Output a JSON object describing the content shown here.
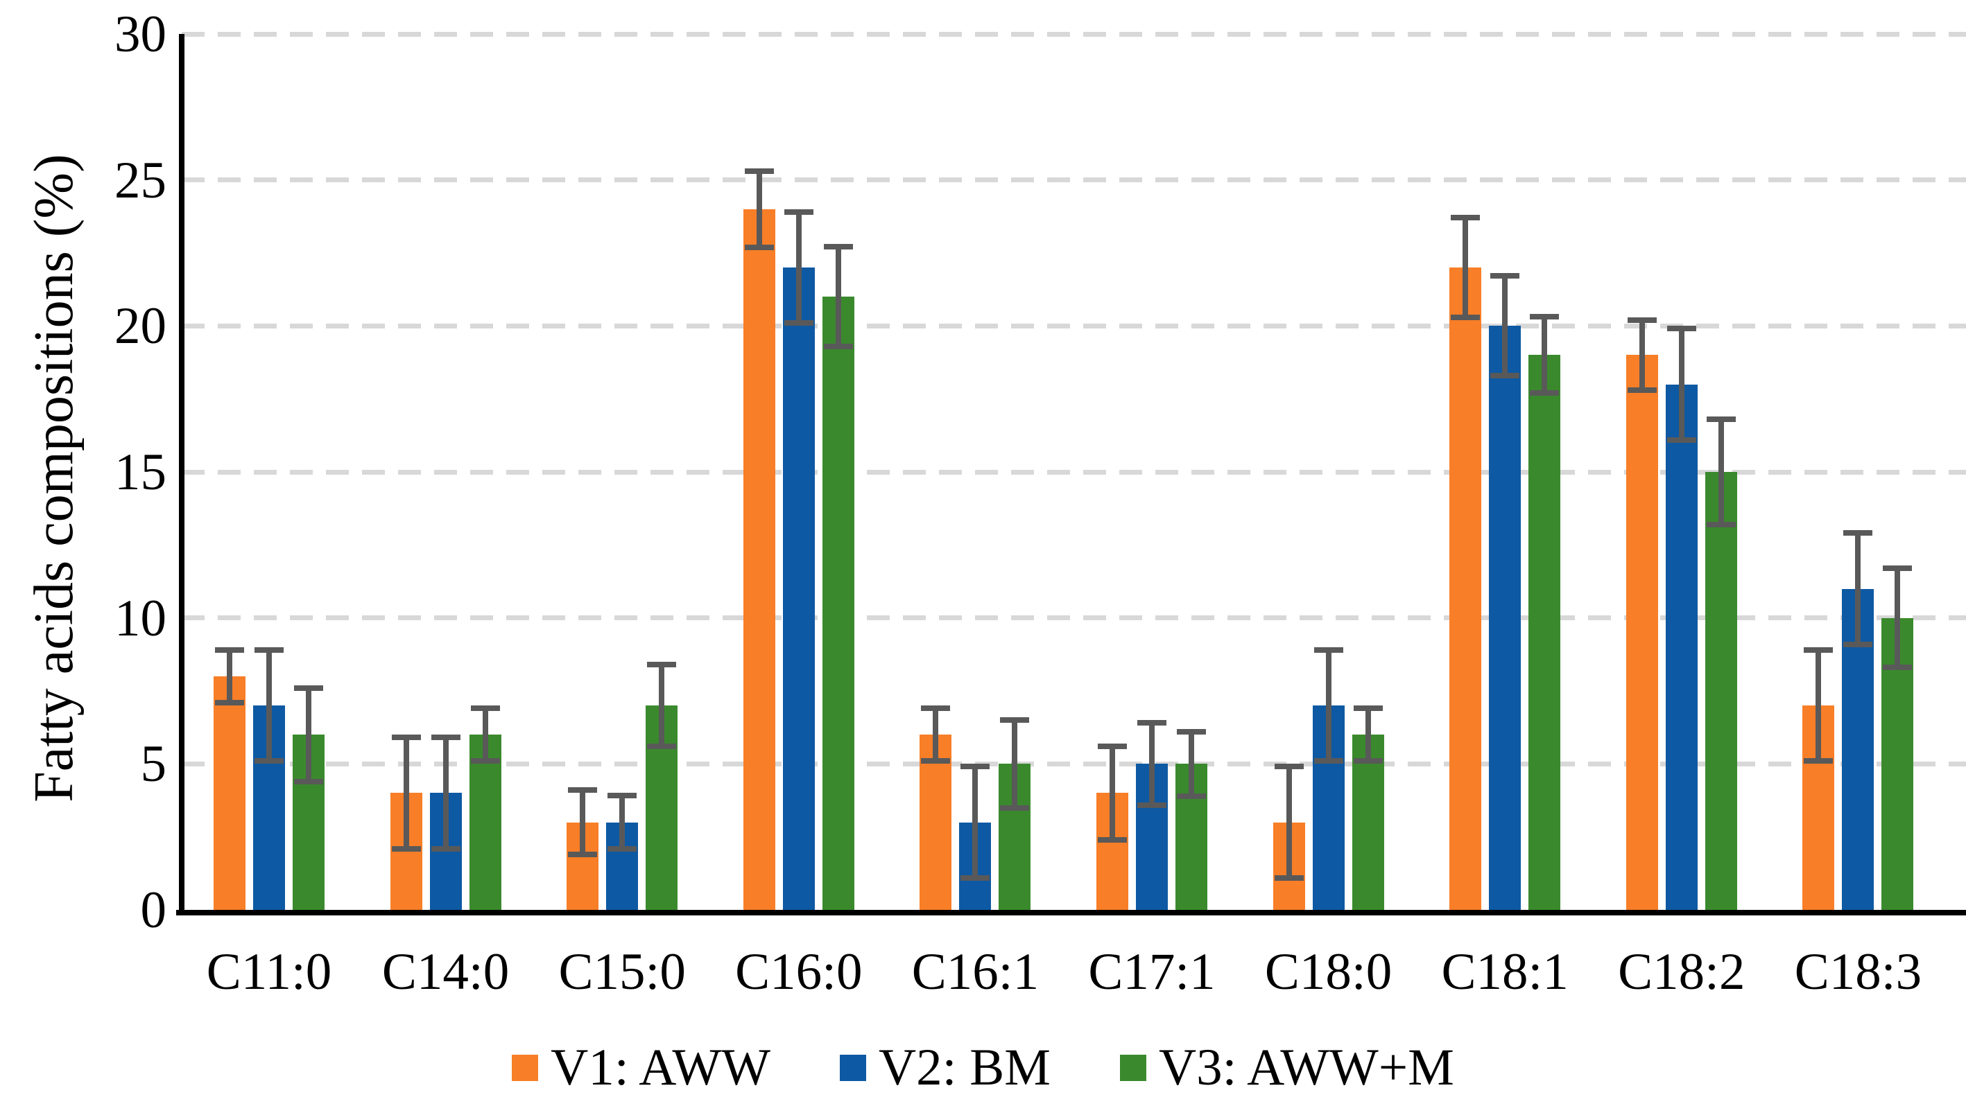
{
  "chart_data": {
    "type": "bar",
    "title": "",
    "ylabel": "Fatty acids compositions (%)",
    "xlabel": "",
    "ylim": [
      0,
      30
    ],
    "ytick_step": 5,
    "grid": "horizontal-dashed",
    "legend_position": "bottom",
    "categories": [
      "C11:0",
      "C14:0",
      "C15:0",
      "C16:0",
      "C16:1",
      "C17:1",
      "C18:0",
      "C18:1",
      "C18:2",
      "C18:3"
    ],
    "series": [
      {
        "name": "V1: AWW",
        "color": "#F87E27",
        "values": [
          8,
          4,
          3,
          24,
          6,
          4,
          3,
          22,
          19,
          7
        ],
        "errors": [
          1.0,
          2.0,
          1.2,
          1.4,
          1.0,
          1.7,
          2.0,
          1.8,
          1.3,
          2.0
        ]
      },
      {
        "name": "V2: BM",
        "color": "#0E59A3",
        "values": [
          7,
          4,
          3,
          22,
          3,
          5,
          7,
          20,
          18,
          11
        ],
        "errors": [
          2.0,
          2.0,
          1.0,
          2.0,
          2.0,
          1.5,
          2.0,
          1.8,
          2.0,
          2.0
        ]
      },
      {
        "name": "V3: AWW+M",
        "color": "#3A8A2D",
        "values": [
          6,
          6,
          7,
          21,
          5,
          5,
          6,
          19,
          15,
          10
        ],
        "errors": [
          1.7,
          1.0,
          1.5,
          1.8,
          1.6,
          1.2,
          1.0,
          1.4,
          1.9,
          1.8
        ]
      }
    ],
    "error_bar_color": "#595959",
    "gridline_color": "#D8D8D8",
    "axis_color": "#000000"
  }
}
